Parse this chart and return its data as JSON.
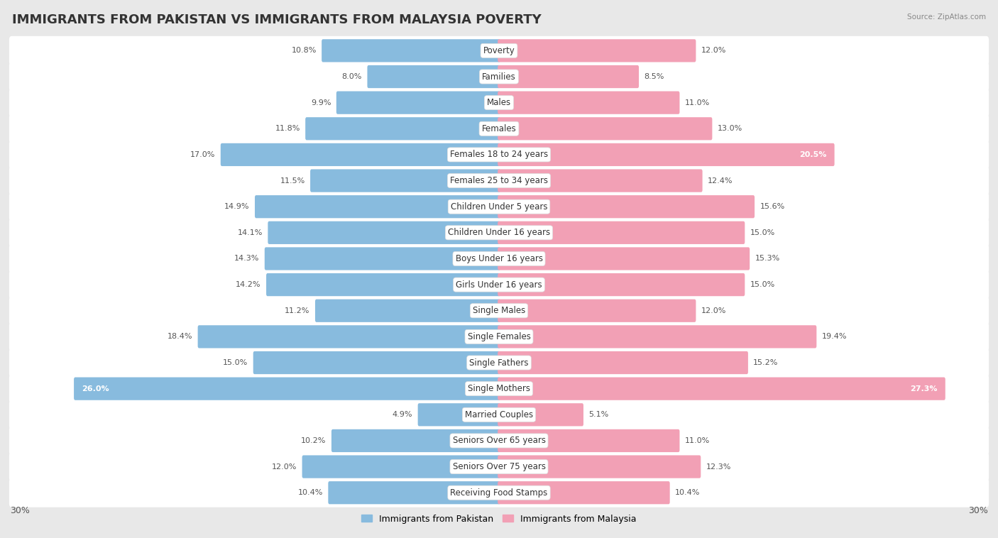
{
  "title": "IMMIGRANTS FROM PAKISTAN VS IMMIGRANTS FROM MALAYSIA POVERTY",
  "source": "Source: ZipAtlas.com",
  "categories": [
    "Poverty",
    "Families",
    "Males",
    "Females",
    "Females 18 to 24 years",
    "Females 25 to 34 years",
    "Children Under 5 years",
    "Children Under 16 years",
    "Boys Under 16 years",
    "Girls Under 16 years",
    "Single Males",
    "Single Females",
    "Single Fathers",
    "Single Mothers",
    "Married Couples",
    "Seniors Over 65 years",
    "Seniors Over 75 years",
    "Receiving Food Stamps"
  ],
  "pakistan_values": [
    10.8,
    8.0,
    9.9,
    11.8,
    17.0,
    11.5,
    14.9,
    14.1,
    14.3,
    14.2,
    11.2,
    18.4,
    15.0,
    26.0,
    4.9,
    10.2,
    12.0,
    10.4
  ],
  "malaysia_values": [
    12.0,
    8.5,
    11.0,
    13.0,
    20.5,
    12.4,
    15.6,
    15.0,
    15.3,
    15.0,
    12.0,
    19.4,
    15.2,
    27.3,
    5.1,
    11.0,
    12.3,
    10.4
  ],
  "pakistan_color": "#88BBDE",
  "malaysia_color": "#F2A0B5",
  "pakistan_label": "Immigrants from Pakistan",
  "malaysia_label": "Immigrants from Malaysia",
  "background_color": "#e8e8e8",
  "row_bg_color": "#ffffff",
  "xlim": 30.0,
  "title_fontsize": 13,
  "label_fontsize": 8.5,
  "value_fontsize": 8.0,
  "white_value_threshold": 20.0
}
